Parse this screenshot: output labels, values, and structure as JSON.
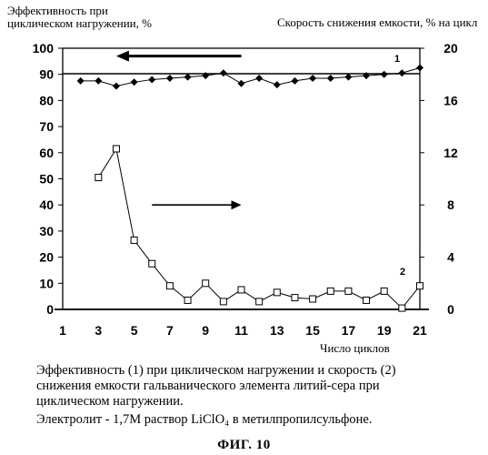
{
  "chart_data": {
    "type": "line",
    "y_left_label": [
      "Эффективность при",
      "циклическом нагружении, %"
    ],
    "y_right_label": "Скорость снижения емкости, % на цикл",
    "x_label": "Число циклов",
    "x_ticks": [
      1,
      3,
      5,
      7,
      9,
      11,
      13,
      15,
      17,
      19,
      21
    ],
    "y_left_ticks": [
      0,
      10,
      20,
      30,
      40,
      50,
      60,
      70,
      80,
      90,
      100
    ],
    "y_right_ticks": [
      0,
      4,
      8,
      12,
      16,
      20
    ],
    "xlim": [
      1,
      21
    ],
    "ylim_left": [
      0,
      100
    ],
    "ylim_right": [
      0,
      20
    ],
    "grid": false,
    "series": [
      {
        "name": "1",
        "axis": "left",
        "marker": "diamond",
        "x": [
          2,
          3,
          4,
          5,
          6,
          7,
          8,
          9,
          10,
          11,
          12,
          13,
          14,
          15,
          16,
          17,
          18,
          19,
          20,
          21
        ],
        "y": [
          87.5,
          87.5,
          85.5,
          87,
          88,
          88.5,
          89,
          89.5,
          90.5,
          86.5,
          88.5,
          86,
          87.5,
          88.5,
          88.5,
          89,
          89.5,
          90,
          90.5,
          92.5
        ]
      },
      {
        "name": "2",
        "axis": "right",
        "marker": "square",
        "x": [
          3,
          4,
          5,
          6,
          7,
          8,
          9,
          10,
          11,
          12,
          13,
          14,
          15,
          16,
          17,
          18,
          19,
          20,
          21
        ],
        "y": [
          10.1,
          12.3,
          5.3,
          3.5,
          1.8,
          0.7,
          2.0,
          0.6,
          1.5,
          0.6,
          1.3,
          0.9,
          0.8,
          1.4,
          1.4,
          0.7,
          1.4,
          0.1,
          1.8
        ]
      }
    ],
    "arrows": [
      {
        "target": "left",
        "direction": "left",
        "from_x": 11,
        "to_x": 4,
        "y": 97
      },
      {
        "target": "right",
        "direction": "right",
        "from_x": 6,
        "to_x": 11,
        "y": 8
      }
    ]
  },
  "caption": {
    "line1": "Эффективность (1) при циклическом нагружении  и скорость (2)",
    "line2": "снижения емкости гальванического элемента литий-сера при",
    "line3": "циклическом нагружении.",
    "electrolyte": "Электролит - 1,7М раствор LiClO₄ в метилпропилсульфоне."
  },
  "figure_label": "ФИГ. 10"
}
